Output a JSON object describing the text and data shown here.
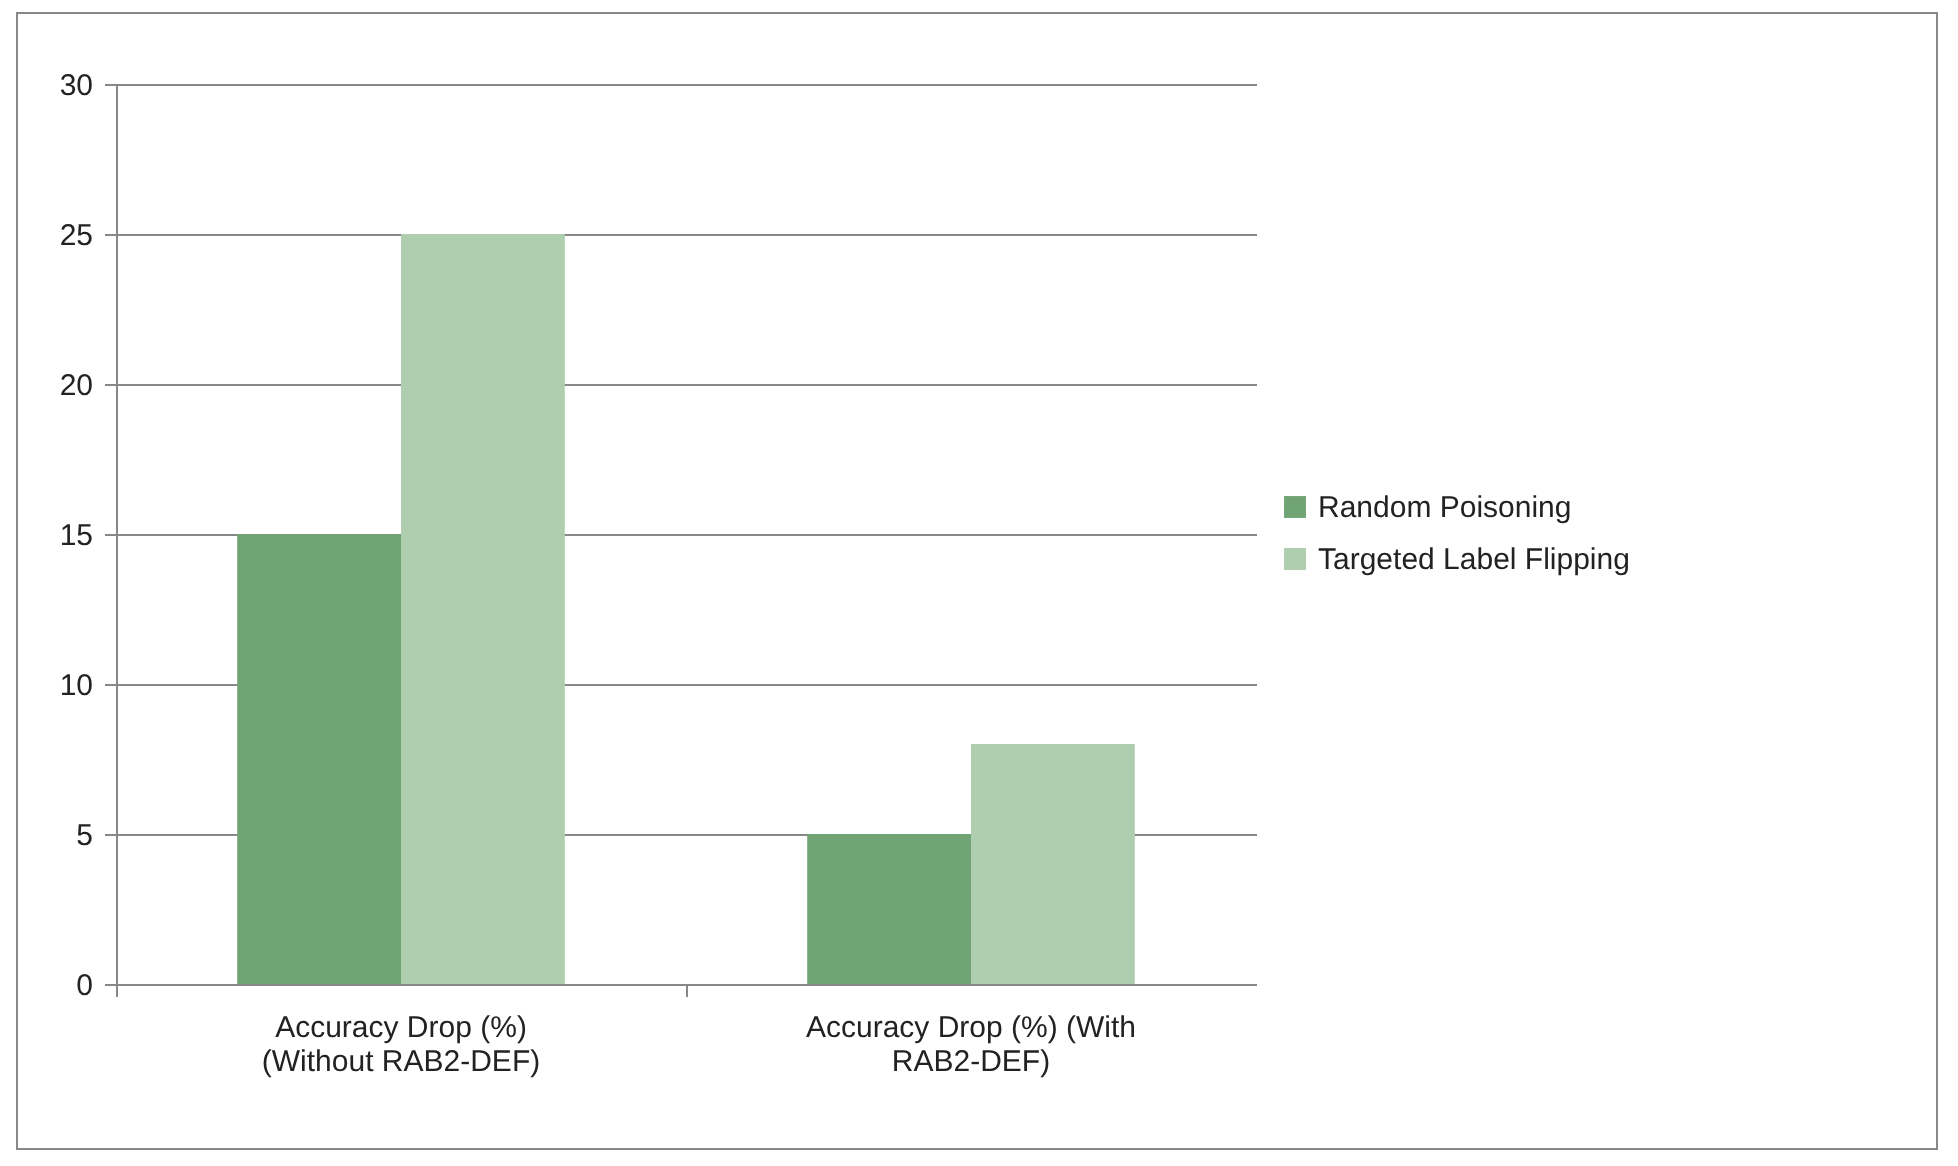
{
  "chart_data": {
    "type": "bar",
    "categories": [
      "Accuracy Drop (%) (Without RAB2-DEF)",
      "Accuracy Drop (%) (With RAB2-DEF)"
    ],
    "series": [
      {
        "name": "Random Poisoning",
        "color": "#70a474",
        "values": [
          15,
          5
        ]
      },
      {
        "name": "Targeted Label Flipping",
        "color": "#afcdaf",
        "values": [
          25,
          8
        ]
      }
    ],
    "ylim": [
      0,
      30
    ],
    "yticks": [
      0,
      5,
      10,
      15,
      20,
      25,
      30
    ],
    "grid": "y",
    "legend": "right"
  }
}
